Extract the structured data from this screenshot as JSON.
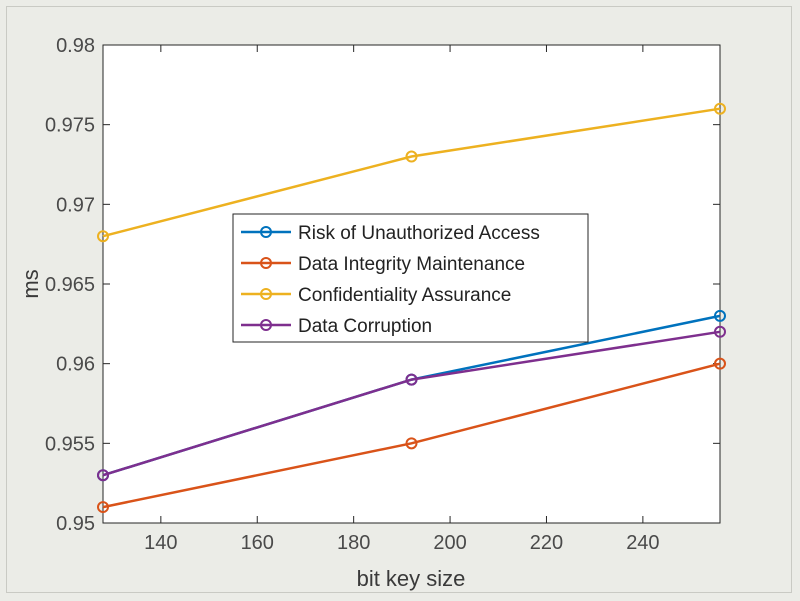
{
  "chart_data": {
    "type": "line",
    "title": "",
    "xlabel": "bit key size",
    "ylabel": "ms",
    "xlim": [
      128,
      256
    ],
    "ylim": [
      0.95,
      0.98
    ],
    "xticks": [
      140,
      160,
      180,
      200,
      220,
      240
    ],
    "yticks": [
      0.95,
      0.955,
      0.96,
      0.965,
      0.97,
      0.975,
      0.98
    ],
    "x": [
      128,
      192,
      256
    ],
    "legend_position": "center",
    "series": [
      {
        "name": "Risk of Unauthorized Access",
        "color": "#0072bd",
        "values": [
          0.953,
          0.959,
          0.963
        ]
      },
      {
        "name": "Data Integrity Maintenance",
        "color": "#d95319",
        "values": [
          0.951,
          0.955,
          0.96
        ]
      },
      {
        "name": "Confidentiality Assurance",
        "color": "#edb120",
        "values": [
          0.968,
          0.973,
          0.976
        ]
      },
      {
        "name": "Data Corruption",
        "color": "#7e2f8e",
        "values": [
          0.953,
          0.959,
          0.962
        ]
      }
    ]
  }
}
